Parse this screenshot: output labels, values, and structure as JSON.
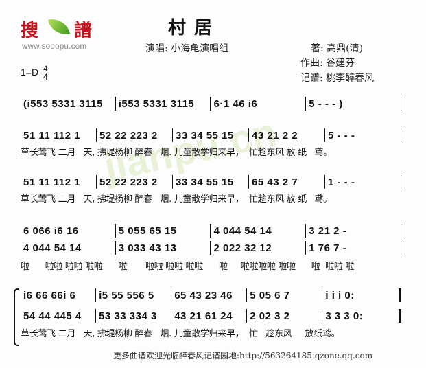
{
  "logo": {
    "text": "搜譜",
    "url": "www.sooopu.com"
  },
  "watermark": "jianpu.cn",
  "title": "村居",
  "singer": "演唱: 小海龟演唱组",
  "lyricist": "著: 高鼎(清)",
  "composer": "作曲: 谷建芬",
  "transcriber": "记谱: 桃李醉春风",
  "key": "1=D",
  "time_sig": {
    "top": "4",
    "bottom": "4"
  },
  "rows": [
    {
      "measures": [
        "(i553 5331 3115",
        "i553 5331 3115",
        "6·1 46 i6",
        "5 - - - )"
      ]
    },
    {
      "measures": [
        "51 11 112 1",
        "52 22 223 2",
        "33 34 55 15",
        "43 21 2 2",
        "5 - - -"
      ],
      "lyric": "草长莺飞 二月   天, 拂堤杨柳 醉春   烟. 儿童散学归来早，  忙趁东风 放 纸   鸢。"
    },
    {
      "measures": [
        "51 11 112 1",
        "52 22 223 2",
        "33 34 55 15",
        "65 43 2 7",
        "1 - - -"
      ],
      "lyric": "草长莺飞 二月   天, 拂堤杨柳 醉春   烟. 儿童散学归来早，  忙趁东风 放 纸   鸢。"
    },
    {
      "measures": [
        "6 066 i6 16",
        "5 055 65 15",
        "4 044 54 14",
        "3 21 2 -"
      ]
    },
    {
      "measures": [
        "4 044 54 14",
        "3 033 43 13",
        "2 022 32 12",
        "1 76 7 -"
      ],
      "lyric": "啦      啦啦 啦啦 啦啦      啦       啦啦 啦啦 啦啦      啦     啦啦啦啦 啦啦      啦  啦啦 啦"
    },
    {
      "measures": [
        "i6 66 66i 6",
        "i5 55 556 5",
        "65 43 23 46",
        "5 05 6 7",
        "i i i 0:"
      ]
    },
    {
      "measures": [
        "54 44 445 4",
        "53 33 334 3",
        "43 21 61 24",
        "2 02 3 2",
        "3 3 3 0:"
      ],
      "lyric": "草长莺飞 二月   天, 拂堤杨柳 醉春   烟. 儿童散学归来早，  忙   趁东风     放纸鸢。"
    }
  ],
  "footer": "更多曲谱欢迎光临醉春风记谱园地:http://563264185.qzone.qq.com"
}
